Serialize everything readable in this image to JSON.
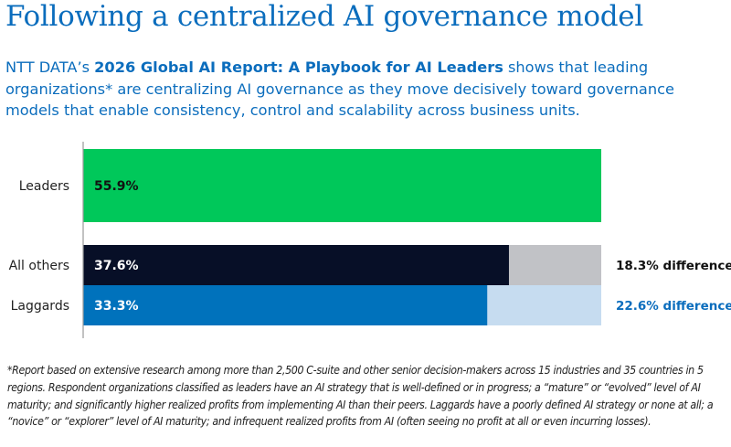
{
  "title": "Following a centralized AI governance model",
  "intro": {
    "prefix": "NTT DATA’s ",
    "report_name": "2026 Global AI Report: A Playbook for AI Leaders",
    "suffix": " shows that leading organizations* are centralizing AI governance as they move decisively toward governance models that enable consistency, control and scalability across business units."
  },
  "chart_data": {
    "type": "bar",
    "orientation": "horizontal",
    "categories": [
      "Leaders",
      "All others",
      "Laggards"
    ],
    "values": [
      55.9,
      37.6,
      33.3
    ],
    "value_labels": [
      "55.9%",
      "37.6%",
      "33.3%"
    ],
    "differences": [
      {
        "category": "All others",
        "value": 18.3,
        "label": "18.3% difference"
      },
      {
        "category": "Laggards",
        "value": 22.6,
        "label": "22.6% difference"
      }
    ],
    "colors": {
      "Leaders": "#00c85a",
      "All others": "#070f27",
      "Laggards": "#0072bc",
      "all_others_gap": "#c1c2c6",
      "laggards_gap": "#c6dcf0",
      "laggards_diff_text": "#0b6dbd"
    },
    "grid": false,
    "title": "",
    "xlabel": "",
    "ylabel": ""
  },
  "footnote": "*Report based on extensive research among more than 2,500 C-suite and other senior decision-makers across 15 industries and 35 countries in 5 regions. Respondent organizations classified as leaders have an AI strategy that is well-defined or in progress; a “mature” or “evolved” level of AI maturity; and significantly higher realized profits from implementing AI than their peers. Laggards have a poorly defined AI strategy or none at all; a “novice” or “explorer” level of AI maturity; and infrequent realized profits from AI (often seeing no profit at all or even incurring losses)."
}
